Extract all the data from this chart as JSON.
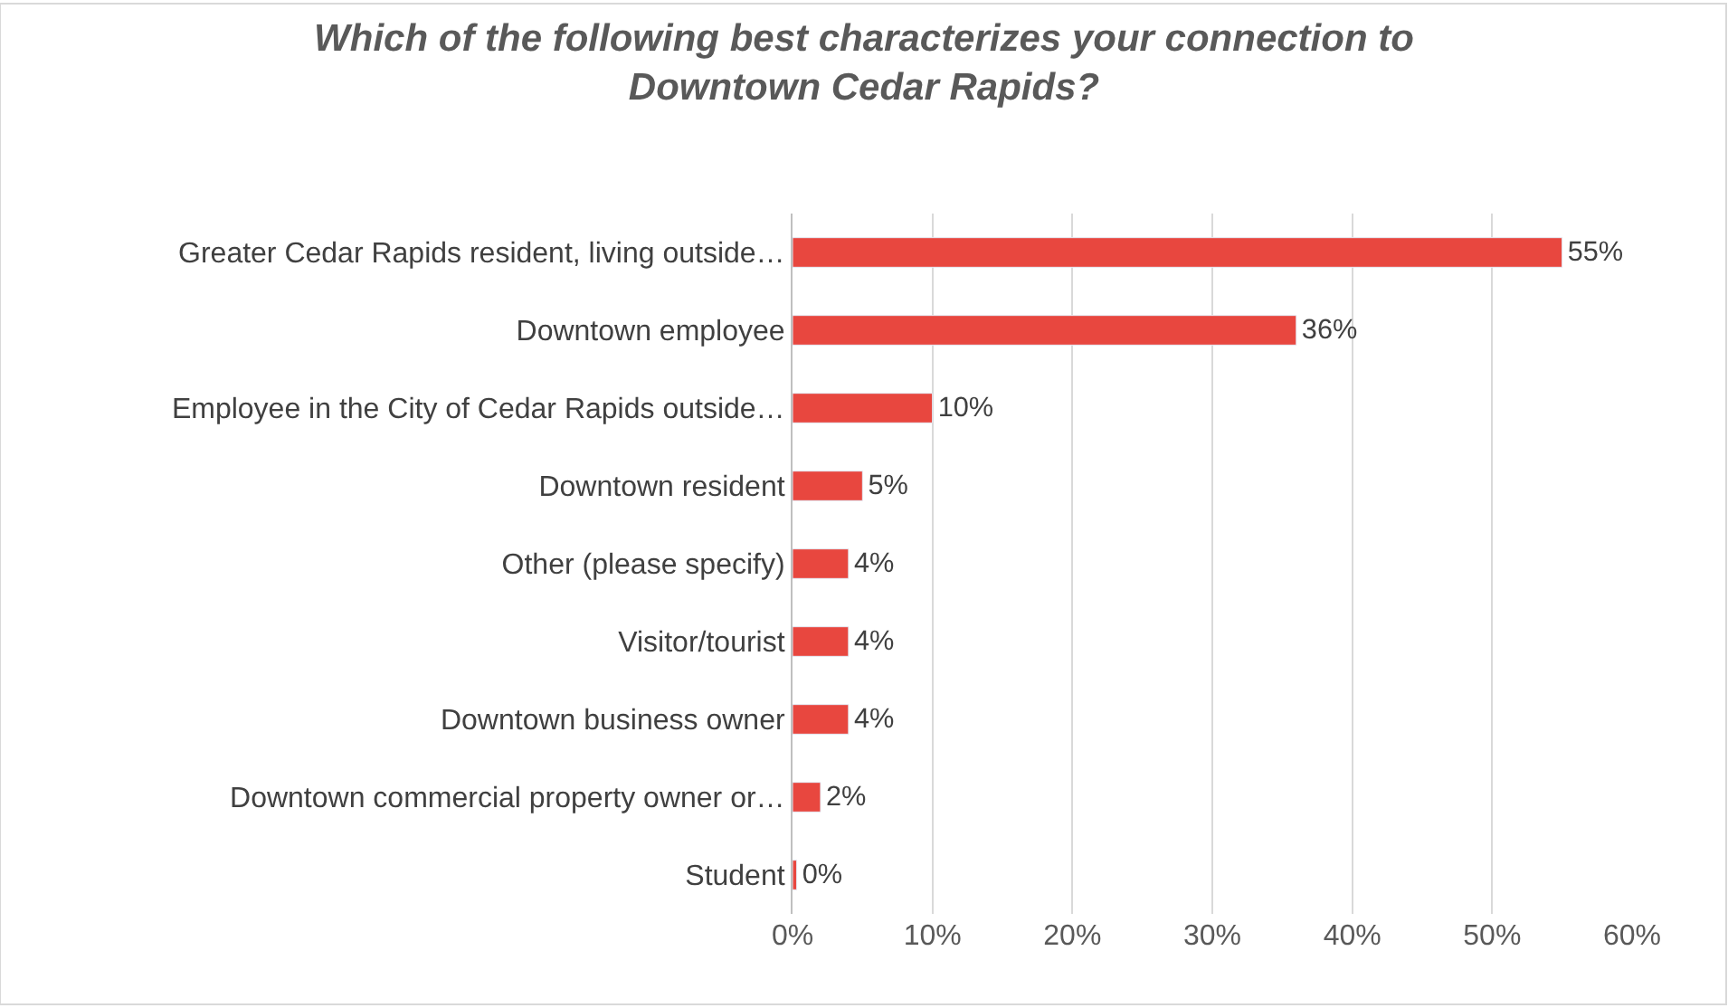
{
  "chart_data": {
    "type": "bar",
    "orientation": "horizontal",
    "title": "Which of the following best characterizes your connection to\nDowntown Cedar Rapids?",
    "categories": [
      "Greater Cedar Rapids resident, living outside…",
      "Downtown employee",
      "Employee in the City of Cedar Rapids outside…",
      "Downtown resident",
      "Other (please specify)",
      "Visitor/tourist",
      "Downtown business owner",
      "Downtown commercial property owner or…",
      "Student"
    ],
    "values": [
      55,
      36,
      10,
      5,
      4,
      4,
      4,
      2,
      0.3
    ],
    "value_labels": [
      "55%",
      "36%",
      "10%",
      "5%",
      "4%",
      "4%",
      "4%",
      "2%",
      "0%"
    ],
    "color": "#e8473f",
    "xlim": [
      0,
      60
    ],
    "xticks": [
      {
        "value": 0,
        "label": "0%"
      },
      {
        "value": 10,
        "label": "10%"
      },
      {
        "value": 20,
        "label": "20%"
      },
      {
        "value": 30,
        "label": "30%"
      },
      {
        "value": 40,
        "label": "40%"
      },
      {
        "value": 50,
        "label": "50%"
      },
      {
        "value": 60,
        "label": "60%"
      }
    ],
    "grid": "x"
  }
}
